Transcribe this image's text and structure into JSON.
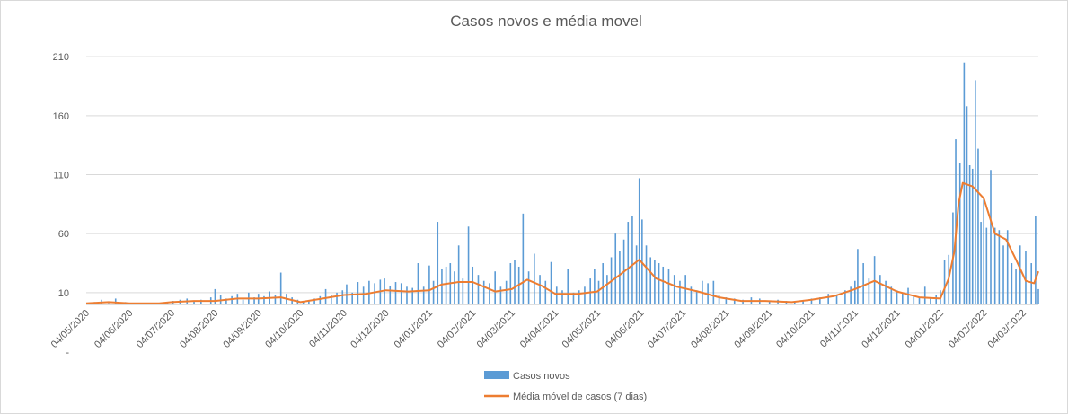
{
  "chart_data": {
    "type": "bar+line",
    "title": "Casos novos e média movel",
    "xlabel": "",
    "ylabel": "",
    "y_ticks": [
      "-",
      "10",
      "60",
      "110",
      "160",
      "210"
    ],
    "y_tick_values": [
      0,
      10,
      60,
      110,
      160,
      210
    ],
    "ylim": [
      0,
      220
    ],
    "x_range": [
      "2020-05-04",
      "2022-03-15"
    ],
    "x_tick_labels": [
      "04/05/2020",
      "04/06/2020",
      "04/07/2020",
      "04/08/2020",
      "04/09/2020",
      "04/10/2020",
      "04/11/2020",
      "04/12/2020",
      "04/01/2021",
      "04/02/2021",
      "04/03/2021",
      "04/04/2021",
      "04/05/2021",
      "04/06/2021",
      "04/07/2021",
      "04/08/2021",
      "04/09/2021",
      "04/10/2021",
      "04/11/2021",
      "04/12/2021",
      "04/01/2022",
      "04/02/2022",
      "04/03/2022"
    ],
    "x_tick_dates": [
      "2020-05-04",
      "2020-06-04",
      "2020-07-04",
      "2020-08-04",
      "2020-09-04",
      "2020-10-04",
      "2020-11-04",
      "2020-12-04",
      "2021-01-04",
      "2021-02-04",
      "2021-03-04",
      "2021-04-04",
      "2021-05-04",
      "2021-06-04",
      "2021-07-04",
      "2021-08-04",
      "2021-09-04",
      "2021-10-04",
      "2021-11-04",
      "2021-12-04",
      "2022-01-04",
      "2022-02-04",
      "2022-03-04"
    ],
    "grid": true,
    "legend_position": "bottom",
    "series": [
      {
        "name": "Casos novos",
        "kind": "bar",
        "color": "#5b9bd5",
        "points": [
          [
            "2020-05-04",
            0
          ],
          [
            "2020-05-10",
            2
          ],
          [
            "2020-05-15",
            4
          ],
          [
            "2020-05-20",
            1
          ],
          [
            "2020-05-25",
            5
          ],
          [
            "2020-06-01",
            2
          ],
          [
            "2020-06-10",
            1
          ],
          [
            "2020-06-20",
            1
          ],
          [
            "2020-07-01",
            2
          ],
          [
            "2020-07-05",
            3
          ],
          [
            "2020-07-10",
            4
          ],
          [
            "2020-07-15",
            5
          ],
          [
            "2020-07-20",
            3
          ],
          [
            "2020-07-25",
            4
          ],
          [
            "2020-08-01",
            6
          ],
          [
            "2020-08-04",
            13
          ],
          [
            "2020-08-08",
            8
          ],
          [
            "2020-08-12",
            5
          ],
          [
            "2020-08-16",
            7
          ],
          [
            "2020-08-20",
            9
          ],
          [
            "2020-08-24",
            4
          ],
          [
            "2020-08-28",
            10
          ],
          [
            "2020-09-01",
            6
          ],
          [
            "2020-09-04",
            9
          ],
          [
            "2020-09-08",
            7
          ],
          [
            "2020-09-12",
            11
          ],
          [
            "2020-09-16",
            8
          ],
          [
            "2020-09-20",
            27
          ],
          [
            "2020-09-24",
            9
          ],
          [
            "2020-09-28",
            6
          ],
          [
            "2020-10-02",
            4
          ],
          [
            "2020-10-06",
            2
          ],
          [
            "2020-10-10",
            3
          ],
          [
            "2020-10-14",
            5
          ],
          [
            "2020-10-18",
            7
          ],
          [
            "2020-10-22",
            13
          ],
          [
            "2020-10-26",
            8
          ],
          [
            "2020-10-30",
            10
          ],
          [
            "2020-11-03",
            12
          ],
          [
            "2020-11-06",
            17
          ],
          [
            "2020-11-10",
            10
          ],
          [
            "2020-11-14",
            19
          ],
          [
            "2020-11-18",
            15
          ],
          [
            "2020-11-22",
            20
          ],
          [
            "2020-11-26",
            18
          ],
          [
            "2020-11-30",
            21
          ],
          [
            "2020-12-03",
            22
          ],
          [
            "2020-12-07",
            16
          ],
          [
            "2020-12-11",
            19
          ],
          [
            "2020-12-15",
            18
          ],
          [
            "2020-12-19",
            15
          ],
          [
            "2020-12-23",
            14
          ],
          [
            "2020-12-27",
            35
          ],
          [
            "2020-12-31",
            15
          ],
          [
            "2021-01-04",
            33
          ],
          [
            "2021-01-07",
            20
          ],
          [
            "2021-01-10",
            70
          ],
          [
            "2021-01-13",
            30
          ],
          [
            "2021-01-16",
            32
          ],
          [
            "2021-01-19",
            35
          ],
          [
            "2021-01-22",
            28
          ],
          [
            "2021-01-25",
            50
          ],
          [
            "2021-01-28",
            22
          ],
          [
            "2021-02-01",
            66
          ],
          [
            "2021-02-04",
            32
          ],
          [
            "2021-02-08",
            25
          ],
          [
            "2021-02-12",
            20
          ],
          [
            "2021-02-16",
            18
          ],
          [
            "2021-02-20",
            28
          ],
          [
            "2021-02-24",
            15
          ],
          [
            "2021-02-28",
            20
          ],
          [
            "2021-03-03",
            35
          ],
          [
            "2021-03-06",
            38
          ],
          [
            "2021-03-09",
            32
          ],
          [
            "2021-03-12",
            77
          ],
          [
            "2021-03-16",
            28
          ],
          [
            "2021-03-20",
            43
          ],
          [
            "2021-03-24",
            25
          ],
          [
            "2021-03-28",
            20
          ],
          [
            "2021-04-01",
            36
          ],
          [
            "2021-04-05",
            15
          ],
          [
            "2021-04-09",
            12
          ],
          [
            "2021-04-13",
            30
          ],
          [
            "2021-04-17",
            10
          ],
          [
            "2021-04-21",
            12
          ],
          [
            "2021-04-25",
            15
          ],
          [
            "2021-04-29",
            22
          ],
          [
            "2021-05-02",
            30
          ],
          [
            "2021-05-05",
            20
          ],
          [
            "2021-05-08",
            35
          ],
          [
            "2021-05-11",
            25
          ],
          [
            "2021-05-14",
            40
          ],
          [
            "2021-05-17",
            60
          ],
          [
            "2021-05-20",
            45
          ],
          [
            "2021-05-23",
            55
          ],
          [
            "2021-05-26",
            70
          ],
          [
            "2021-05-29",
            75
          ],
          [
            "2021-06-01",
            50
          ],
          [
            "2021-06-03",
            107
          ],
          [
            "2021-06-05",
            72
          ],
          [
            "2021-06-08",
            50
          ],
          [
            "2021-06-11",
            40
          ],
          [
            "2021-06-14",
            38
          ],
          [
            "2021-06-17",
            35
          ],
          [
            "2021-06-20",
            32
          ],
          [
            "2021-06-24",
            30
          ],
          [
            "2021-06-28",
            25
          ],
          [
            "2021-07-02",
            20
          ],
          [
            "2021-07-06",
            25
          ],
          [
            "2021-07-10",
            15
          ],
          [
            "2021-07-14",
            12
          ],
          [
            "2021-07-18",
            20
          ],
          [
            "2021-07-22",
            18
          ],
          [
            "2021-07-26",
            20
          ],
          [
            "2021-07-30",
            8
          ],
          [
            "2021-08-04",
            6
          ],
          [
            "2021-08-10",
            5
          ],
          [
            "2021-08-16",
            4
          ],
          [
            "2021-08-22",
            6
          ],
          [
            "2021-08-28",
            5
          ],
          [
            "2021-09-04",
            3
          ],
          [
            "2021-09-10",
            4
          ],
          [
            "2021-09-16",
            3
          ],
          [
            "2021-09-22",
            2
          ],
          [
            "2021-09-28",
            3
          ],
          [
            "2021-10-04",
            5
          ],
          [
            "2021-10-10",
            6
          ],
          [
            "2021-10-16",
            9
          ],
          [
            "2021-10-22",
            8
          ],
          [
            "2021-10-28",
            12
          ],
          [
            "2021-11-01",
            15
          ],
          [
            "2021-11-04",
            20
          ],
          [
            "2021-11-06",
            47
          ],
          [
            "2021-11-10",
            35
          ],
          [
            "2021-11-14",
            22
          ],
          [
            "2021-11-18",
            41
          ],
          [
            "2021-11-22",
            25
          ],
          [
            "2021-11-26",
            20
          ],
          [
            "2021-11-30",
            15
          ],
          [
            "2021-12-04",
            12
          ],
          [
            "2021-12-08",
            10
          ],
          [
            "2021-12-12",
            14
          ],
          [
            "2021-12-16",
            8
          ],
          [
            "2021-12-20",
            6
          ],
          [
            "2021-12-24",
            15
          ],
          [
            "2021-12-28",
            5
          ],
          [
            "2022-01-01",
            8
          ],
          [
            "2022-01-04",
            12
          ],
          [
            "2022-01-07",
            38
          ],
          [
            "2022-01-10",
            42
          ],
          [
            "2022-01-13",
            78
          ],
          [
            "2022-01-15",
            140
          ],
          [
            "2022-01-18",
            120
          ],
          [
            "2022-01-21",
            205
          ],
          [
            "2022-01-23",
            168
          ],
          [
            "2022-01-25",
            118
          ],
          [
            "2022-01-27",
            115
          ],
          [
            "2022-01-29",
            190
          ],
          [
            "2022-01-31",
            132
          ],
          [
            "2022-02-02",
            70
          ],
          [
            "2022-02-04",
            90
          ],
          [
            "2022-02-06",
            65
          ],
          [
            "2022-02-09",
            114
          ],
          [
            "2022-02-12",
            65
          ],
          [
            "2022-02-15",
            63
          ],
          [
            "2022-02-18",
            50
          ],
          [
            "2022-02-21",
            63
          ],
          [
            "2022-02-24",
            35
          ],
          [
            "2022-02-27",
            30
          ],
          [
            "2022-03-02",
            50
          ],
          [
            "2022-03-06",
            45
          ],
          [
            "2022-03-10",
            35
          ],
          [
            "2022-03-13",
            75
          ],
          [
            "2022-03-15",
            13
          ]
        ]
      },
      {
        "name": "Média móvel de casos (7 dias)",
        "kind": "line",
        "color": "#ed7d31",
        "points": [
          [
            "2020-05-04",
            1
          ],
          [
            "2020-05-20",
            2
          ],
          [
            "2020-06-04",
            1
          ],
          [
            "2020-06-25",
            1
          ],
          [
            "2020-07-04",
            2
          ],
          [
            "2020-07-20",
            3
          ],
          [
            "2020-08-04",
            3
          ],
          [
            "2020-08-20",
            5
          ],
          [
            "2020-09-04",
            5
          ],
          [
            "2020-09-20",
            6
          ],
          [
            "2020-10-04",
            2
          ],
          [
            "2020-10-20",
            5
          ],
          [
            "2020-11-04",
            8
          ],
          [
            "2020-11-20",
            9
          ],
          [
            "2020-12-04",
            12
          ],
          [
            "2020-12-20",
            11
          ],
          [
            "2021-01-04",
            12
          ],
          [
            "2021-01-13",
            17
          ],
          [
            "2021-01-25",
            19
          ],
          [
            "2021-02-04",
            19
          ],
          [
            "2021-02-20",
            11
          ],
          [
            "2021-03-04",
            13
          ],
          [
            "2021-03-15",
            21
          ],
          [
            "2021-03-25",
            16
          ],
          [
            "2021-04-04",
            9
          ],
          [
            "2021-04-20",
            9
          ],
          [
            "2021-05-04",
            11
          ],
          [
            "2021-05-20",
            25
          ],
          [
            "2021-06-03",
            38
          ],
          [
            "2021-06-15",
            22
          ],
          [
            "2021-06-30",
            15
          ],
          [
            "2021-07-15",
            11
          ],
          [
            "2021-07-30",
            6
          ],
          [
            "2021-08-15",
            3
          ],
          [
            "2021-09-01",
            3
          ],
          [
            "2021-09-20",
            2
          ],
          [
            "2021-10-04",
            4
          ],
          [
            "2021-10-20",
            7
          ],
          [
            "2021-11-04",
            13
          ],
          [
            "2021-11-18",
            20
          ],
          [
            "2021-12-04",
            11
          ],
          [
            "2021-12-20",
            6
          ],
          [
            "2022-01-04",
            5
          ],
          [
            "2022-01-10",
            22
          ],
          [
            "2022-01-14",
            45
          ],
          [
            "2022-01-17",
            85
          ],
          [
            "2022-01-20",
            103
          ],
          [
            "2022-01-27",
            100
          ],
          [
            "2022-02-04",
            90
          ],
          [
            "2022-02-12",
            60
          ],
          [
            "2022-02-20",
            55
          ],
          [
            "2022-02-27",
            38
          ],
          [
            "2022-03-06",
            20
          ],
          [
            "2022-03-12",
            18
          ],
          [
            "2022-03-15",
            28
          ]
        ]
      }
    ]
  }
}
